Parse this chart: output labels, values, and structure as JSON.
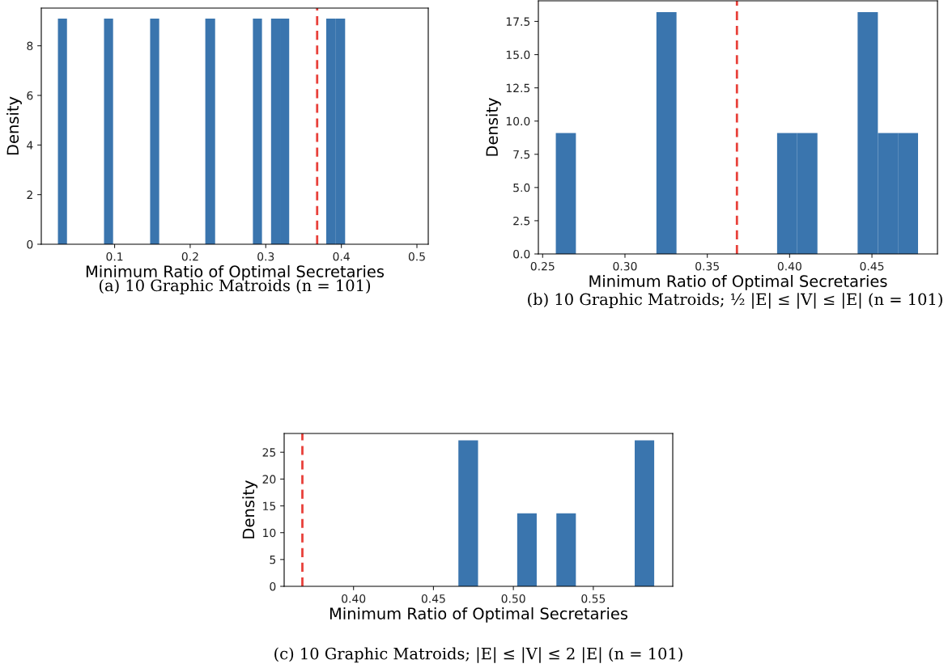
{
  "chart_data": [
    {
      "type": "histogram",
      "xlabel": "Minimum Ratio of Optimal Secretaries",
      "ylabel": "Density",
      "color": "#3a75ae",
      "bins": [
        0.025,
        0.037,
        0.086,
        0.098,
        0.147,
        0.159,
        0.22,
        0.233,
        0.283,
        0.295,
        0.307,
        0.319,
        0.331,
        0.38,
        0.392,
        0.405
      ],
      "values": [
        9.1,
        0,
        9.1,
        0,
        9.1,
        0,
        9.1,
        0,
        9.1,
        0,
        9.1,
        9.1,
        0,
        9.1,
        9.1
      ],
      "xlim": [
        0.003,
        0.515
      ],
      "xticks": [
        0.1,
        0.2,
        0.3,
        0.4,
        0.5
      ],
      "ylim": [
        0,
        9.52
      ],
      "yticks": [
        0,
        2,
        4,
        6,
        8
      ],
      "ref_lines": [
        {
          "axis": "x",
          "value": 0.368,
          "color": "#e8403a",
          "line_style": "dashed"
        }
      ],
      "annotations": [
        "(a) 10 Graphic Matroids (n = 101)"
      ]
    },
    {
      "type": "histogram",
      "xlabel": "Minimum Ratio of Optimal Secretaries",
      "ylabel": "Density",
      "color": "#3a75ae",
      "bins": [
        0.258,
        0.2702,
        0.2824,
        0.2947,
        0.3069,
        0.3191,
        0.3313,
        0.3435,
        0.3558,
        0.368,
        0.3802,
        0.3924,
        0.4046,
        0.4169,
        0.4291,
        0.4413,
        0.4536,
        0.4658,
        0.478
      ],
      "values": [
        9.1,
        0,
        0,
        0,
        0,
        18.2,
        0,
        0,
        0,
        0,
        0,
        9.1,
        9.1,
        0,
        0,
        18.2,
        9.1,
        9.1
      ],
      "xlim": [
        0.2474,
        0.4898
      ],
      "xticks": [
        {
          "value": 0.25,
          "label": "0.25"
        },
        {
          "value": 0.3,
          "label": "0.30"
        },
        {
          "value": 0.35,
          "label": "0.35"
        },
        {
          "value": 0.4,
          "label": "0.40"
        },
        {
          "value": 0.45,
          "label": "0.45"
        }
      ],
      "ylim": [
        0,
        19.05
      ],
      "yticks": [
        {
          "value": 0,
          "label": "0.0"
        },
        2.5,
        {
          "value": 5,
          "label": "5.0"
        },
        7.5,
        {
          "value": 10,
          "label": "10.0"
        },
        12.5,
        {
          "value": 15,
          "label": "15.0"
        },
        17.5
      ],
      "ref_lines": [
        {
          "axis": "x",
          "value": 0.368,
          "color": "#e8403a",
          "line_style": "dashed"
        }
      ],
      "annotations": [
        "(b) 10 Graphic Matroids; ½ |E| ≤ |V| ≤ |E| (n = 101)"
      ]
    },
    {
      "type": "histogram",
      "xlabel": "Minimum Ratio of Optimal Secretaries",
      "ylabel": "Density",
      "color": "#3a75ae",
      "bins": [
        0.4656,
        0.4779,
        0.4901,
        0.5024,
        0.5146,
        0.5269,
        0.5391,
        0.5514,
        0.5636,
        0.5759,
        0.5881
      ],
      "values": [
        27.2,
        0,
        0,
        13.6,
        0,
        13.6,
        0,
        0,
        0,
        27.2
      ],
      "xlim": [
        0.3566,
        0.5997
      ],
      "xticks": [
        {
          "value": 0.4,
          "label": "0.40"
        },
        0.45,
        {
          "value": 0.5,
          "label": "0.50"
        },
        0.55
      ],
      "ylim": [
        0,
        28.5
      ],
      "yticks": [
        0,
        5,
        10,
        15,
        20,
        25
      ],
      "ref_lines": [
        {
          "axis": "x",
          "value": 0.368,
          "color": "#e8403a",
          "line_style": "dashed"
        }
      ],
      "annotations": [
        "(c) 10 Graphic Matroids; |E| ≤ |V| ≤ 2 |E| (n = 101)"
      ]
    }
  ]
}
